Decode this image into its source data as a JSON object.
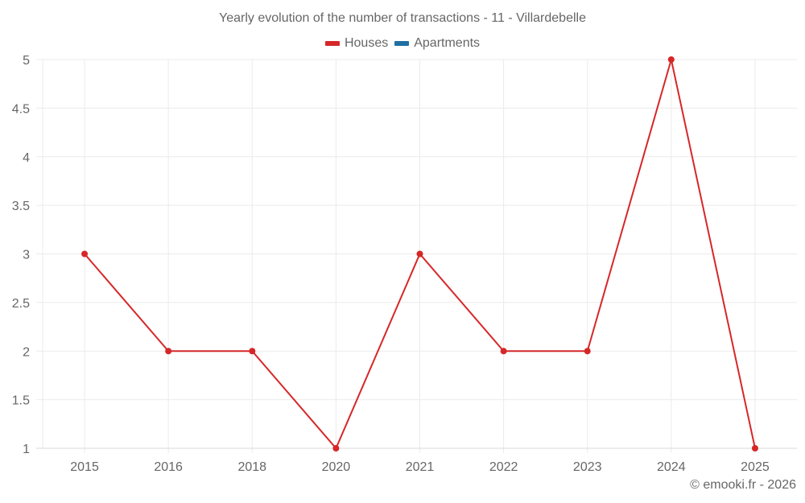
{
  "chart": {
    "title": "Yearly evolution of the number of transactions - 11 - Villardebelle",
    "legend": [
      {
        "label": "Houses",
        "color": "#d62728"
      },
      {
        "label": "Apartments",
        "color": "#1f6fa3"
      }
    ],
    "footer": "© emooki.fr - 2026"
  },
  "chart_data": {
    "type": "line",
    "title": "Yearly evolution of the number of transactions - 11 - Villardebelle",
    "xlabel": "",
    "ylabel": "",
    "categories": [
      "2015",
      "2016",
      "2018",
      "2020",
      "2021",
      "2022",
      "2023",
      "2024",
      "2025"
    ],
    "series": [
      {
        "name": "Houses",
        "color": "#d62728",
        "values": [
          3,
          2,
          2,
          1,
          3,
          2,
          2,
          5,
          1
        ]
      },
      {
        "name": "Apartments",
        "color": "#1f6fa3",
        "values": []
      }
    ],
    "ylim": [
      1,
      5
    ],
    "yticks": [
      "1",
      "1.5",
      "2",
      "2.5",
      "3",
      "3.5",
      "4",
      "4.5",
      "5"
    ],
    "grid": true,
    "legend_position": "top"
  }
}
